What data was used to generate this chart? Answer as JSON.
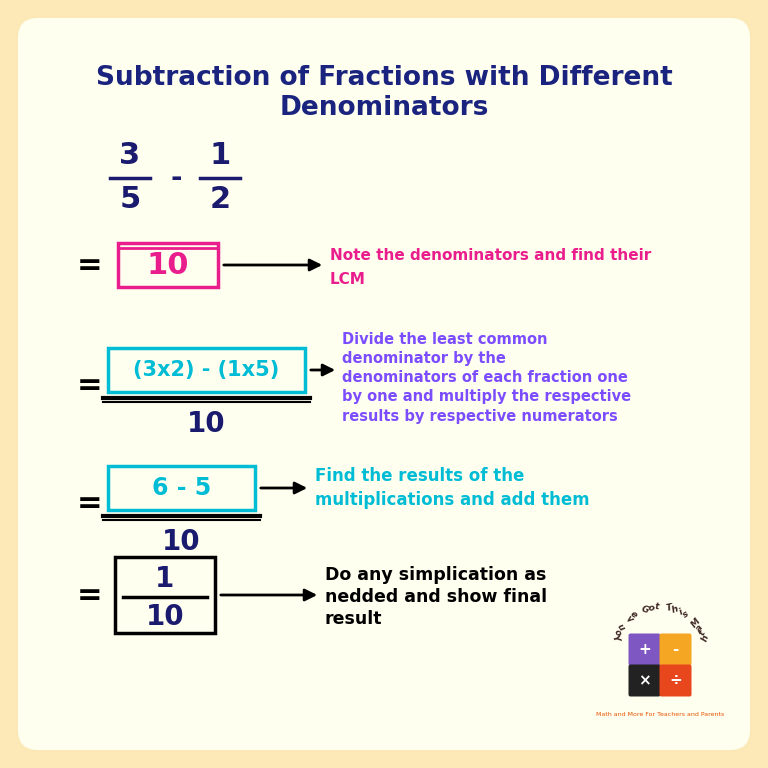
{
  "title_line1": "Subtraction of Fractions with Different",
  "title_line2": "Denominators",
  "title_color": "#1a237e",
  "bg_outer": "#fde8b8",
  "bg_inner": "#fffff0",
  "fraction1_num": "3",
  "fraction1_den": "5",
  "fraction2_num": "1",
  "fraction2_den": "2",
  "operator": "-",
  "step1_box_text": "10",
  "step1_box_color": "#e91e8c",
  "step1_note_line1": "Note the denominators and find their",
  "step1_note_line2": "LCM",
  "step1_note_color": "#e91e8c",
  "step2_num_text": "(3x2) - (1x5)",
  "step2_den_text": "10",
  "step2_box_color": "#00bcd4",
  "step2_note": "Divide the least common\ndenominator by the\ndenominators of each fraction one\nby one and multiply the respective\nresults by respective numerators",
  "step2_note_color": "#7c4dff",
  "step3_num_text": "6 - 5",
  "step3_den_text": "10",
  "step3_box_color": "#00bcd4",
  "step3_note_line1": "Find the results of the",
  "step3_note_line2": "multiplications and add them",
  "step3_note_color": "#00bcd4",
  "step4_num_text": "1",
  "step4_den_text": "10",
  "step4_note": "Do any simplication as\nnedded and show final\nresult",
  "step4_note_color": "#000000",
  "arrow_color": "#000000",
  "equals_color": "#000000",
  "fraction_color": "#1a1a6e",
  "logo_text_color": "#3e2723",
  "logo_tagline_color": "#e65100",
  "logo_colors_top": [
    "#7e57c2",
    "#f5a623"
  ],
  "logo_colors_bottom": [
    "#222222",
    "#e8471e"
  ],
  "logo_symbols_top": [
    "+",
    "-"
  ],
  "logo_symbols_bottom": [
    "×",
    "÷"
  ]
}
